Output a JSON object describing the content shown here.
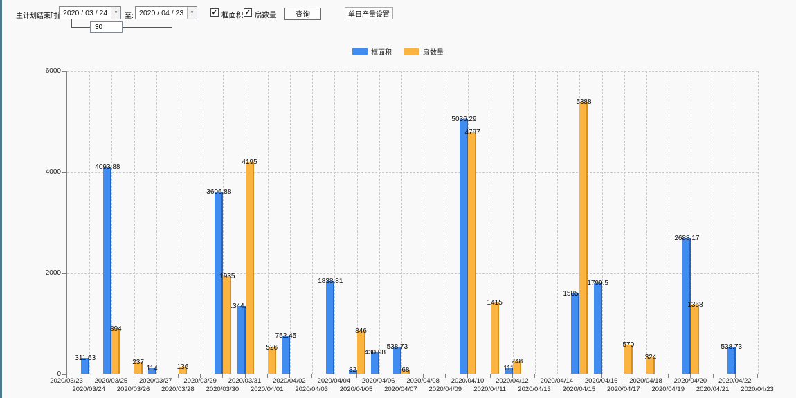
{
  "window": {
    "accent_strip_color": "#4a7a8c"
  },
  "icons": {
    "checkmark": "✓",
    "dropdown_arrow": "▾"
  },
  "toolbar": {
    "plan_end_label": "主计划结束时间:",
    "date_from": "2020 / 03 / 24",
    "to_label": "至:",
    "date_to": "2020 / 04 / 23",
    "span_days": "30",
    "checkboxes": [
      {
        "label": "框面积",
        "checked": true
      },
      {
        "label": "扇数量",
        "checked": true
      }
    ],
    "query_button": "查询",
    "daily_output_button": "单日产量设置"
  },
  "legend": [
    {
      "label": "框面积",
      "color": "#418CF0"
    },
    {
      "label": "扇数量",
      "color": "#FCB441"
    }
  ],
  "chart_data": {
    "type": "bar",
    "title": "",
    "xlabel": "",
    "ylabel": "",
    "ylim": [
      0,
      6000
    ],
    "yticks": [
      0,
      2000,
      4000,
      6000
    ],
    "grid": "dashed",
    "legend_position": "top",
    "categories": [
      "2020/03/23",
      "2020/03/24",
      "2020/03/25",
      "2020/03/26",
      "2020/03/27",
      "2020/03/28",
      "2020/03/29",
      "2020/03/30",
      "2020/03/31",
      "2020/04/01",
      "2020/04/02",
      "2020/04/03",
      "2020/04/04",
      "2020/04/05",
      "2020/04/06",
      "2020/04/07",
      "2020/04/08",
      "2020/04/09",
      "2020/04/10",
      "2020/04/11",
      "2020/04/12",
      "2020/04/13",
      "2020/04/14",
      "2020/04/15",
      "2020/04/16",
      "2020/04/17",
      "2020/04/18",
      "2020/04/19",
      "2020/04/20",
      "2020/04/21",
      "2020/04/22",
      "2020/04/23"
    ],
    "series": [
      {
        "name": "框面积",
        "key": "frame-area",
        "color": "#418CF0",
        "edge_color": "#2463BE",
        "values": [
          null,
          311.63,
          4093.88,
          null,
          114,
          null,
          null,
          3606.88,
          1344.95,
          null,
          752.45,
          null,
          1838.81,
          82,
          430.98,
          538.73,
          null,
          null,
          5036.29,
          null,
          111,
          null,
          null,
          1585.96,
          1799.5,
          null,
          null,
          null,
          2688.17,
          null,
          538.73,
          null
        ]
      },
      {
        "name": "扇数量",
        "key": "sash-count",
        "color": "#FCB441",
        "edge_color": "#D68F1E",
        "values": [
          null,
          null,
          894,
          237,
          null,
          136,
          null,
          1935,
          4195,
          526,
          null,
          null,
          null,
          846,
          null,
          68,
          null,
          null,
          4787,
          1415,
          248,
          null,
          null,
          5388,
          null,
          570,
          324,
          null,
          1368,
          null,
          null,
          null
        ]
      }
    ]
  }
}
